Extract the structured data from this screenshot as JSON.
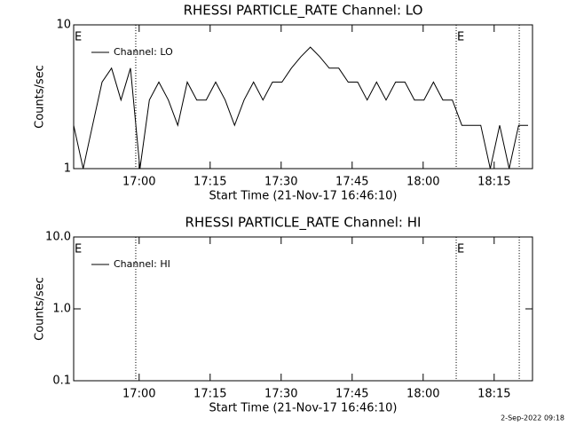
{
  "chart_data": [
    {
      "type": "line",
      "title": "RHESSI PARTICLE_RATE Channel: LO",
      "ylabel": "Counts/sec",
      "xlabel": "Start Time (21-Nov-17 16:46:10)",
      "log_y": true,
      "ylim": [
        1,
        10
      ],
      "yticks": [
        1,
        10
      ],
      "xlim": [
        0,
        5816
      ],
      "xticks": [
        {
          "value": 830,
          "label": "17:00"
        },
        {
          "value": 1730,
          "label": "17:15"
        },
        {
          "value": 2630,
          "label": "17:30"
        },
        {
          "value": 3530,
          "label": "17:45"
        },
        {
          "value": 4430,
          "label": "18:00"
        },
        {
          "value": 5330,
          "label": "18:15"
        }
      ],
      "flag_lines": [
        787,
        4849,
        5648
      ],
      "annotations": [
        {
          "text": "E",
          "x": 0
        },
        {
          "text": "E",
          "x": 4849
        }
      ],
      "x": [
        0,
        120,
        240,
        360,
        480,
        600,
        720,
        840,
        960,
        1080,
        1200,
        1320,
        1440,
        1560,
        1680,
        1800,
        1920,
        2040,
        2160,
        2280,
        2400,
        2520,
        2640,
        2760,
        2880,
        3000,
        3120,
        3240,
        3360,
        3480,
        3600,
        3720,
        3840,
        3960,
        4080,
        4200,
        4320,
        4440,
        4560,
        4680,
        4800,
        4920,
        5040,
        5160,
        5280,
        5400,
        5520,
        5640,
        5760
      ],
      "series": [
        {
          "name": "Channel: LO",
          "color": "#000000",
          "values": [
            2,
            1,
            2,
            4,
            5,
            3,
            5,
            1,
            3,
            4,
            3,
            2,
            4,
            3,
            3,
            4,
            3,
            2,
            3,
            4,
            3,
            4,
            4,
            5,
            6,
            7,
            6,
            5,
            5,
            4,
            4,
            3,
            4,
            3,
            4,
            4,
            3,
            3,
            4,
            3,
            3,
            2,
            2,
            2,
            1,
            2,
            1,
            2,
            2
          ]
        }
      ]
    },
    {
      "type": "line",
      "title": "RHESSI PARTICLE_RATE Channel: HI",
      "ylabel": "Counts/sec",
      "xlabel": "Start Time (21-Nov-17 16:46:10)",
      "log_y": true,
      "ylim": [
        0.1,
        10
      ],
      "yticks": [
        {
          "value": 0.1,
          "label": "0.1"
        },
        {
          "value": 1,
          "label": "1.0"
        },
        {
          "value": 10,
          "label": "10.0"
        }
      ],
      "xlim": [
        0,
        5816
      ],
      "xticks": [
        {
          "value": 830,
          "label": "17:00"
        },
        {
          "value": 1730,
          "label": "17:15"
        },
        {
          "value": 2630,
          "label": "17:30"
        },
        {
          "value": 3530,
          "label": "17:45"
        },
        {
          "value": 4430,
          "label": "18:00"
        },
        {
          "value": 5330,
          "label": "18:15"
        }
      ],
      "flag_lines": [
        787,
        4849,
        5648
      ],
      "annotations": [
        {
          "text": "E",
          "x": 0
        },
        {
          "text": "E",
          "x": 4849
        }
      ],
      "x": [],
      "series": [
        {
          "name": "Channel: HI",
          "color": "#000000",
          "values": []
        }
      ]
    }
  ],
  "footer": "2-Sep-2022 09:18"
}
